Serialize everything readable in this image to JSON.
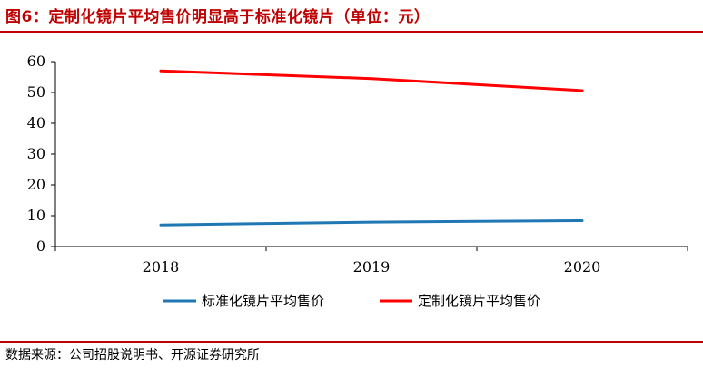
{
  "header": {
    "title": "图6：定制化镜片平均售价明显高于标准化镜片（单位：元）"
  },
  "footer": {
    "source": "数据来源：公司招股说明书、开源证券研究所"
  },
  "colors": {
    "accent": "#c00000",
    "series_blue": "#1f77b4",
    "series_red": "#ff0000"
  },
  "chart_data": {
    "type": "line",
    "title": "图6：定制化镜片平均售价明显高于标准化镜片（单位：元）",
    "xlabel": "",
    "ylabel": "",
    "x": [
      "2018",
      "2019",
      "2020"
    ],
    "ylim": [
      0,
      60
    ],
    "yticks": [
      0,
      10,
      20,
      30,
      40,
      50,
      60
    ],
    "grid": false,
    "legend_position": "bottom",
    "series": [
      {
        "name": "标准化镜片平均售价",
        "values": [
          7.0,
          7.9,
          8.4
        ],
        "color": "#1f77b4"
      },
      {
        "name": "定制化镜片平均售价",
        "values": [
          57.0,
          54.5,
          50.6
        ],
        "color": "#ff0000"
      }
    ]
  }
}
